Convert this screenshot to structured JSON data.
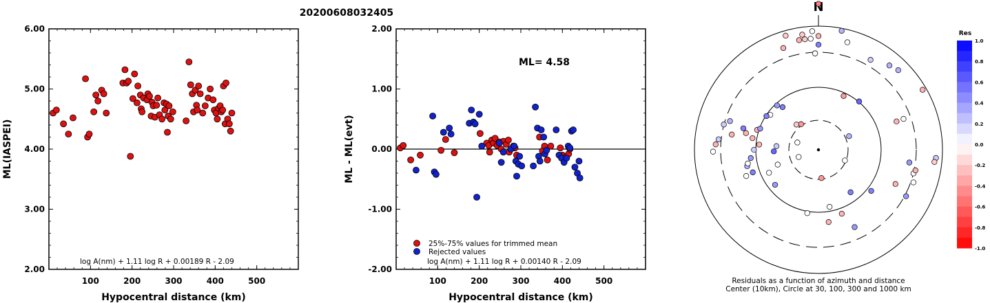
{
  "event_id": "20200608032405",
  "chart_data": [
    {
      "type": "scatter",
      "xlabel": "Hypocentral distance (km)",
      "ylabel": "ML(IASPEI)",
      "xlim": [
        0,
        600
      ],
      "ylim": [
        2.0,
        6.0
      ],
      "x_ticks": [
        "100",
        "200",
        "300",
        "400",
        "500"
      ],
      "y_ticks": [
        "2.00",
        "3.00",
        "4.00",
        "5.00",
        "6.00"
      ],
      "formula": "log A(nm) + 1.11 log R + 0.00189 R - 2.09",
      "point_color": "#dd1111",
      "points": [
        [
          10,
          4.6
        ],
        [
          18,
          4.65
        ],
        [
          35,
          4.42
        ],
        [
          47,
          4.25
        ],
        [
          58,
          4.52
        ],
        [
          88,
          5.17
        ],
        [
          93,
          4.2
        ],
        [
          97,
          4.25
        ],
        [
          108,
          4.62
        ],
        [
          113,
          4.9
        ],
        [
          118,
          4.8
        ],
        [
          127,
          4.98
        ],
        [
          132,
          4.92
        ],
        [
          138,
          4.6
        ],
        [
          178,
          5.1
        ],
        [
          183,
          5.32
        ],
        [
          187,
          5.1
        ],
        [
          191,
          5.13
        ],
        [
          196,
          3.88
        ],
        [
          202,
          4.84
        ],
        [
          206,
          5.25
        ],
        [
          212,
          4.77
        ],
        [
          214,
          5.05
        ],
        [
          220,
          4.9
        ],
        [
          222,
          4.67
        ],
        [
          224,
          4.62
        ],
        [
          228,
          4.85
        ],
        [
          236,
          4.82
        ],
        [
          238,
          4.92
        ],
        [
          242,
          4.88
        ],
        [
          246,
          4.55
        ],
        [
          248,
          4.78
        ],
        [
          251,
          4.72
        ],
        [
          255,
          4.53
        ],
        [
          259,
          4.73
        ],
        [
          262,
          4.85
        ],
        [
          266,
          4.57
        ],
        [
          272,
          4.5
        ],
        [
          277,
          4.77
        ],
        [
          279,
          4.65
        ],
        [
          283,
          4.75
        ],
        [
          285,
          4.28
        ],
        [
          287,
          4.55
        ],
        [
          289,
          4.72
        ],
        [
          293,
          4.5
        ],
        [
          298,
          4.62
        ],
        [
          330,
          4.47
        ],
        [
          337,
          5.45
        ],
        [
          341,
          5.07
        ],
        [
          345,
          4.92
        ],
        [
          348,
          4.62
        ],
        [
          352,
          4.98
        ],
        [
          355,
          4.73
        ],
        [
          357,
          4.65
        ],
        [
          360,
          5.05
        ],
        [
          364,
          4.92
        ],
        [
          370,
          4.6
        ],
        [
          376,
          4.72
        ],
        [
          383,
          4.85
        ],
        [
          388,
          5.0
        ],
        [
          395,
          4.82
        ],
        [
          398,
          4.65
        ],
        [
          402,
          4.6
        ],
        [
          405,
          4.5
        ],
        [
          408,
          4.68
        ],
        [
          412,
          4.72
        ],
        [
          415,
          4.62
        ],
        [
          418,
          4.65
        ],
        [
          420,
          5.05
        ],
        [
          424,
          4.42
        ],
        [
          426,
          5.1
        ],
        [
          430,
          4.5
        ],
        [
          434,
          4.42
        ],
        [
          437,
          4.3
        ],
        [
          440,
          4.6
        ]
      ]
    },
    {
      "type": "scatter",
      "xlabel": "Hypocentral distance (km)",
      "ylabel": "ML - ML(evt)",
      "xlim": [
        0,
        600
      ],
      "ylim": [
        -2.0,
        2.0
      ],
      "x_ticks": [
        "100",
        "200",
        "300",
        "400",
        "500"
      ],
      "y_ticks": [
        "-2.00",
        "-1.00",
        "0.00",
        "1.00",
        "2.00"
      ],
      "annotation": "ML= 4.58",
      "formula": "log A(nm) + 1.11 log R + 0.00140 R - 2.09",
      "legend_position": "bottom-left",
      "series": [
        {
          "name": "25%-75% values for trimmed mean",
          "color": "#dd1111",
          "points": [
            [
              10,
              0.02
            ],
            [
              17,
              0.06
            ],
            [
              35,
              -0.18
            ],
            [
              58,
              -0.1
            ],
            [
              108,
              -0.02
            ],
            [
              119,
              0.16
            ],
            [
              140,
              -0.06
            ],
            [
              202,
              0.26
            ],
            [
              218,
              0.1
            ],
            [
              223,
              0.06
            ],
            [
              225,
              -0.05
            ],
            [
              230,
              0.15
            ],
            [
              234,
              0.1
            ],
            [
              238,
              0.18
            ],
            [
              243,
              0.06
            ],
            [
              248,
              0.12
            ],
            [
              253,
              0.0
            ],
            [
              258,
              0.13
            ],
            [
              265,
              0.08
            ],
            [
              270,
              0.15
            ],
            [
              272,
              -0.05
            ],
            [
              282,
              0.05
            ],
            [
              286,
              0.02
            ],
            [
              290,
              -0.1
            ],
            [
              345,
              0.2
            ],
            [
              352,
              -0.03
            ],
            [
              357,
              0.05
            ],
            [
              364,
              -0.18
            ],
            [
              372,
              0.05
            ],
            [
              395,
              0.02
            ],
            [
              400,
              -0.1
            ],
            [
              410,
              -0.12
            ],
            [
              415,
              -0.08
            ],
            [
              418,
              0.0
            ]
          ]
        },
        {
          "name": "Rejected values",
          "color": "#1122cc",
          "points": [
            [
              48,
              -0.35
            ],
            [
              88,
              0.55
            ],
            [
              92,
              -0.38
            ],
            [
              96,
              -0.42
            ],
            [
              114,
              0.28
            ],
            [
              128,
              0.35
            ],
            [
              132,
              0.25
            ],
            [
              176,
              0.43
            ],
            [
              181,
              0.65
            ],
            [
              186,
              0.45
            ],
            [
              190,
              0.42
            ],
            [
              194,
              -0.8
            ],
            [
              200,
              0.58
            ],
            [
              206,
              0.05
            ],
            [
              248,
              0.1
            ],
            [
              253,
              -0.22
            ],
            [
              258,
              -0.05
            ],
            [
              276,
              0.0
            ],
            [
              284,
              0.05
            ],
            [
              288,
              -0.2
            ],
            [
              290,
              -0.45
            ],
            [
              294,
              -0.25
            ],
            [
              297,
              -0.12
            ],
            [
              302,
              -0.28
            ],
            [
              330,
              -0.28
            ],
            [
              335,
              0.7
            ],
            [
              340,
              0.35
            ],
            [
              343,
              -0.12
            ],
            [
              346,
              -0.2
            ],
            [
              349,
              0.32
            ],
            [
              355,
              0.2
            ],
            [
              358,
              -0.08
            ],
            [
              362,
              -0.02
            ],
            [
              385,
              0.32
            ],
            [
              392,
              -0.1
            ],
            [
              398,
              -0.15
            ],
            [
              404,
              -0.22
            ],
            [
              410,
              -0.15
            ],
            [
              414,
              0.05
            ],
            [
              418,
              0.02
            ],
            [
              422,
              0.3
            ],
            [
              426,
              0.32
            ],
            [
              430,
              -0.3
            ],
            [
              436,
              -0.4
            ],
            [
              440,
              -0.2
            ],
            [
              442,
              -0.48
            ]
          ]
        }
      ],
      "reference_line": 0.0
    },
    {
      "type": "scatter",
      "subtype": "polar",
      "north_label": "N",
      "caption_lines": [
        "Residuals as a function of azimuth and distance",
        "Center (10km), Circle at 30, 100, 300 and 1000 km"
      ],
      "colorbar_title": "Res",
      "colorbar_ticks": [
        "1.0",
        "0.8",
        "0.6",
        "0.4",
        "0.2",
        "0.0",
        "-0.2",
        "-0.4",
        "-0.6",
        "-0.8",
        "-1.0"
      ],
      "colorbar_positive_color": "#0000ff",
      "colorbar_negative_color": "#ff0000",
      "rings_km": [
        30,
        100,
        300,
        1000
      ],
      "stations": [
        [
          45,
          -40,
          0.5
        ],
        [
          52,
          -72,
          -0.3
        ],
        [
          49,
          -43,
          0.4
        ],
        [
          118,
          0,
          -0.5
        ],
        [
          45,
          -129,
          0.4
        ],
        [
          35,
          -110,
          0
        ],
        [
          44,
          -115,
          0
        ],
        [
          36,
          -92,
          0.6
        ],
        [
          48,
          -85,
          -0.3
        ],
        [
          54,
          -80,
          -0.3
        ],
        [
          50,
          -70,
          0.4
        ],
        [
          48,
          -54,
          0
        ],
        [
          50,
          -57,
          0.5
        ],
        [
          52,
          -90,
          0.2
        ],
        [
          98,
          11,
          0.3
        ],
        [
          92,
          0,
          -0.3
        ],
        [
          85,
          0,
          0.5
        ],
        [
          62,
          -110,
          0
        ],
        [
          59,
          -103,
          0.3
        ],
        [
          56,
          -109,
          0.5
        ],
        [
          58,
          -101,
          0
        ],
        [
          55,
          -97,
          0.4
        ],
        [
          48,
          25,
          -0.4
        ],
        [
          89,
          40,
          0.3
        ],
        [
          51,
          40,
          0.6
        ],
        [
          34,
          -85,
          0.2
        ],
        [
          78,
          -2,
          -0.2
        ],
        [
          90,
          -7,
          -0.2
        ],
        [
          90,
          -10,
          -0.3
        ],
        [
          94,
          -8,
          -0.2
        ],
        [
          87,
          -19,
          -0.3
        ],
        [
          96,
          -16,
          -0.2
        ],
        [
          90,
          -4,
          0
        ],
        [
          96,
          -3,
          0
        ],
        [
          90,
          15,
          0
        ],
        [
          84,
          30,
          0.2
        ],
        [
          91,
          45,
          0.3
        ],
        [
          97,
          60,
          -0.3
        ],
        [
          73,
          70,
          0
        ],
        [
          67,
          70,
          -0.3
        ],
        [
          54,
          128,
          0.5
        ],
        [
          69,
          155,
          0.4
        ],
        [
          59,
          172,
          -0.3
        ],
        [
          47,
          169,
          0
        ],
        [
          52,
          190,
          0
        ],
        [
          43,
          143,
          0.5
        ],
        [
          74,
          98,
          0.4
        ],
        [
          68,
          114,
          -0.3
        ],
        [
          78,
          -2,
          0
        ],
        [
          55,
          160,
          -0.3
        ],
        [
          80,
          118,
          0.4
        ],
        [
          79,
          104,
          0
        ],
        [
          81,
          109,
          0
        ],
        [
          80,
          102,
          -0.3
        ],
        [
          95,
          94,
          0.2
        ],
        [
          94,
          96,
          -0.2
        ],
        [
          63,
          -74,
          0.5
        ],
        [
          60,
          -77,
          -0.3
        ],
        [
          81,
          -84,
          0.2
        ],
        [
          83,
          -87,
          -0.3
        ],
        [
          85,
          -91,
          0
        ],
        [
          79,
          -75,
          0.2
        ],
        [
          71,
          -80,
          -0.3
        ],
        [
          75,
          -72,
          0.3
        ],
        [
          27,
          -41,
          -0.2
        ],
        [
          25,
          -34,
          -0.4
        ],
        [
          18,
          -71,
          0
        ],
        [
          17,
          -110,
          0
        ],
        [
          23,
          112,
          0
        ],
        [
          27,
          66,
          0.3
        ],
        [
          23,
          174,
          -0.4
        ]
      ]
    }
  ]
}
